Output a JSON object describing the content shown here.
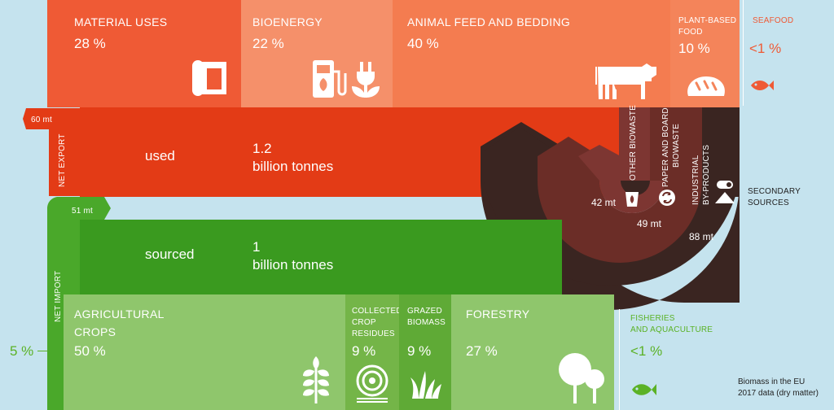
{
  "colors": {
    "sky": "#c5e3ee",
    "material": "#ef5a35",
    "bioenergy": "#f5906a",
    "animal": "#f47c50",
    "plant": "#f4845a",
    "used": "#e33b16",
    "sourced": "#3a9a1f",
    "green_bar": "#4aa82a",
    "crops": "#8fc66c",
    "residues": "#74b548",
    "grazed": "#5faa36",
    "dark": "#3a2521",
    "mid": "#6b2d27",
    "inner": "#7d3632",
    "seafood": "#ef5a35",
    "fish_green": "#5bb226"
  },
  "uses": {
    "material": {
      "label": "MATERIAL USES",
      "pct": "28 %",
      "icon": "paper-roll-icon"
    },
    "bioenergy": {
      "label": "BIOENERGY",
      "pct": "22 %",
      "icon": "fuel-pump-icon"
    },
    "animal": {
      "label": "ANIMAL FEED AND BEDDING",
      "pct": "40 %",
      "icon": "cow-icon"
    },
    "plant": {
      "label_line1": "PLANT-BASED",
      "label_line2": "FOOD",
      "pct": "10 %",
      "icon": "bread-icon"
    },
    "seafood": {
      "label": "SEAFOOD",
      "pct": "<1 %",
      "icon": "fish-icon"
    }
  },
  "flows": {
    "net_export": {
      "label": "NET EXPORT",
      "value": "60 mt"
    },
    "used": {
      "label": "used",
      "amount_line1": "1.2",
      "amount_line2": "billion tonnes"
    },
    "net_import": {
      "label": "NET IMPORT",
      "value": "51 mt"
    },
    "sourced": {
      "label": "sourced",
      "amount_line1": "1",
      "amount_line2": "billion tonnes"
    }
  },
  "secondary": {
    "title_line1": "SECONDARY",
    "title_line2": "SOURCES",
    "other_biowaste": {
      "label": "OTHER BIOWASTE",
      "value": "42 mt",
      "icon": "bin-icon"
    },
    "paper_board": {
      "label_line1": "PAPER AND BOARD",
      "label_line2": "BIOWASTE",
      "value": "49 mt",
      "icon": "recycle-icon"
    },
    "industrial": {
      "label_line1": "INDUSTRIAL",
      "label_line2": "BY-PRODUCTS",
      "value": "88 mt",
      "icon": "logs-icon"
    }
  },
  "sources": {
    "crops": {
      "label_line1": "AGRICULTURAL",
      "label_line2": "CROPS",
      "pct": "50 %",
      "icon": "wheat-icon"
    },
    "residues": {
      "label_line1": "COLLECTED",
      "label_line2": "CROP",
      "label_line3": "RESIDUES",
      "pct": "9 %",
      "icon": "hay-bale-icon"
    },
    "grazed": {
      "label_line1": "GRAZED",
      "label_line2": "BIOMASS",
      "pct": "9 %",
      "icon": "grass-icon"
    },
    "forestry": {
      "label": "FORESTRY",
      "pct": "27 %",
      "icon": "trees-icon"
    },
    "fisheries": {
      "label_line1": "FISHERIES",
      "label_line2": "AND AQUACULTURE",
      "pct": "<1 %",
      "icon": "fish-icon"
    }
  },
  "side": {
    "pct": "5 %"
  },
  "footnote": {
    "line1": "Biomass in the EU",
    "line2": "2017 data (dry matter)"
  }
}
